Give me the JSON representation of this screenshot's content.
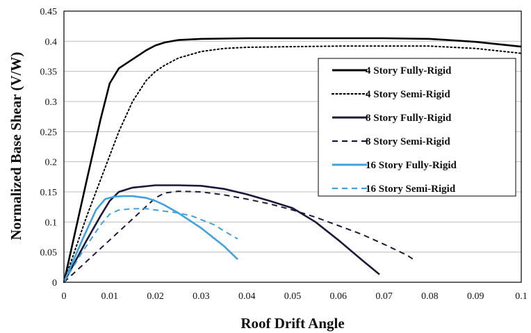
{
  "chart_data": {
    "type": "line",
    "title": "",
    "xlabel": "Roof Drift Angle",
    "ylabel": "Normalized Base Shear (V/W)",
    "xlim": [
      0,
      0.1
    ],
    "ylim": [
      0,
      0.45
    ],
    "x_ticks": [
      "0",
      "0.01",
      "0.02",
      "0.03",
      "0.04",
      "0.05",
      "0.06",
      "0.07",
      "0.08",
      "0.09",
      "0.1"
    ],
    "y_ticks": [
      "0",
      "0.05",
      "0.1",
      "0.15",
      "0.2",
      "0.25",
      "0.3",
      "0.35",
      "0.4",
      "0.45"
    ],
    "grid": "horizontal",
    "legend_position": "right",
    "series": [
      {
        "name": "4 Story Fully-Rigid",
        "color": "#000000",
        "style": "solid",
        "x": [
          0,
          0.005,
          0.008,
          0.01,
          0.012,
          0.015,
          0.018,
          0.02,
          0.022,
          0.025,
          0.03,
          0.04,
          0.05,
          0.06,
          0.07,
          0.08,
          0.09,
          0.1
        ],
        "y": [
          0,
          0.17,
          0.27,
          0.33,
          0.355,
          0.37,
          0.385,
          0.393,
          0.398,
          0.402,
          0.404,
          0.405,
          0.405,
          0.405,
          0.405,
          0.404,
          0.399,
          0.391
        ]
      },
      {
        "name": "4 Story Semi-Rigid",
        "color": "#000000",
        "style": "dotted",
        "x": [
          0,
          0.005,
          0.01,
          0.012,
          0.015,
          0.018,
          0.02,
          0.022,
          0.025,
          0.03,
          0.035,
          0.04,
          0.05,
          0.06,
          0.07,
          0.08,
          0.09,
          0.1
        ],
        "y": [
          0,
          0.11,
          0.21,
          0.25,
          0.3,
          0.335,
          0.35,
          0.36,
          0.372,
          0.383,
          0.388,
          0.39,
          0.391,
          0.392,
          0.392,
          0.392,
          0.388,
          0.38
        ]
      },
      {
        "name": "8 Story Fully-Rigid",
        "color": "#1a1a3a",
        "style": "solid",
        "x": [
          0,
          0.005,
          0.008,
          0.01,
          0.012,
          0.015,
          0.02,
          0.025,
          0.03,
          0.035,
          0.04,
          0.045,
          0.05,
          0.055,
          0.06,
          0.065,
          0.069
        ],
        "y": [
          0,
          0.07,
          0.11,
          0.135,
          0.15,
          0.157,
          0.161,
          0.161,
          0.16,
          0.155,
          0.146,
          0.135,
          0.123,
          0.1,
          0.07,
          0.038,
          0.013
        ]
      },
      {
        "name": "8 Story Semi-Rigid",
        "color": "#1a1a3a",
        "style": "dashed",
        "x": [
          0,
          0.005,
          0.01,
          0.015,
          0.02,
          0.022,
          0.025,
          0.03,
          0.035,
          0.04,
          0.045,
          0.05,
          0.055,
          0.06,
          0.065,
          0.07,
          0.075,
          0.077
        ],
        "y": [
          0,
          0.035,
          0.07,
          0.105,
          0.14,
          0.148,
          0.151,
          0.15,
          0.145,
          0.138,
          0.13,
          0.12,
          0.108,
          0.094,
          0.08,
          0.063,
          0.045,
          0.035
        ]
      },
      {
        "name": "16 Story Fully-Rigid",
        "color": "#3ea2e0",
        "style": "solid",
        "x": [
          0,
          0.004,
          0.007,
          0.009,
          0.011,
          0.013,
          0.015,
          0.018,
          0.02,
          0.022,
          0.025,
          0.028,
          0.03,
          0.033,
          0.035,
          0.038
        ],
        "y": [
          0,
          0.07,
          0.12,
          0.138,
          0.142,
          0.143,
          0.143,
          0.14,
          0.135,
          0.128,
          0.115,
          0.1,
          0.09,
          0.072,
          0.06,
          0.038
        ]
      },
      {
        "name": "16 Story Semi-Rigid",
        "color": "#3ea2e0",
        "style": "dashed",
        "x": [
          0,
          0.004,
          0.008,
          0.01,
          0.012,
          0.015,
          0.018,
          0.02,
          0.022,
          0.025,
          0.028,
          0.03,
          0.033,
          0.035,
          0.038
        ],
        "y": [
          0,
          0.05,
          0.095,
          0.113,
          0.12,
          0.122,
          0.122,
          0.12,
          0.118,
          0.115,
          0.11,
          0.104,
          0.095,
          0.085,
          0.072
        ]
      }
    ]
  }
}
